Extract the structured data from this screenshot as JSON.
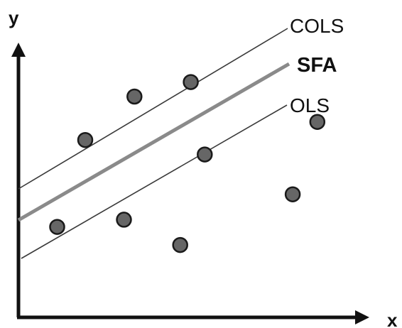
{
  "diagram": {
    "axes": {
      "x_label": "x",
      "y_label": "y"
    },
    "lines": [
      {
        "id": "cols",
        "label": "COLS",
        "color": "#3a3a3a",
        "style": "thin"
      },
      {
        "id": "sfa",
        "label": "SFA",
        "color": "#8a8a8a",
        "style": "thick"
      },
      {
        "id": "ols",
        "label": "OLS",
        "color": "#3a3a3a",
        "style": "thin"
      }
    ],
    "points": [
      {
        "id": "p1",
        "x": 1.9,
        "y": 4.8
      },
      {
        "id": "p2",
        "x": 3.3,
        "y": 6.0
      },
      {
        "id": "p3",
        "x": 4.9,
        "y": 6.4
      },
      {
        "id": "p4",
        "x": 5.3,
        "y": 4.4
      },
      {
        "id": "p5",
        "x": 1.1,
        "y": 2.4
      },
      {
        "id": "p6",
        "x": 3.0,
        "y": 2.6
      },
      {
        "id": "p7",
        "x": 4.6,
        "y": 1.9
      },
      {
        "id": "p8",
        "x": 7.8,
        "y": 3.3
      },
      {
        "id": "p9",
        "x": 8.5,
        "y": 5.3
      }
    ],
    "point_fill": "#666666",
    "point_stroke": "#1a1a1a"
  }
}
